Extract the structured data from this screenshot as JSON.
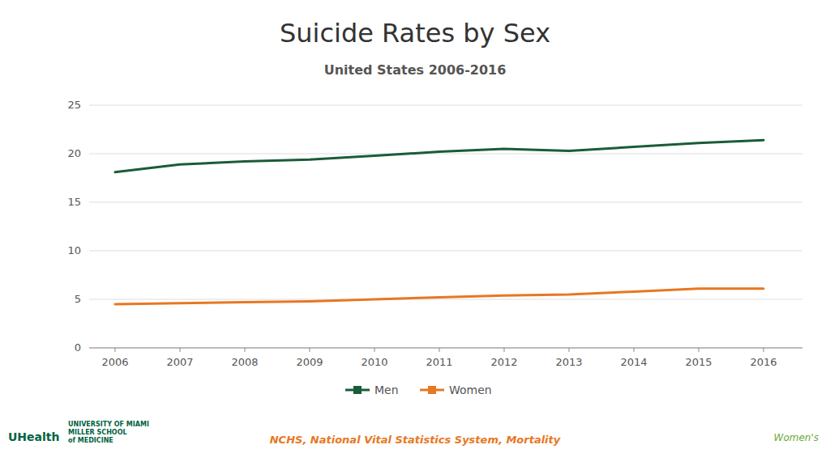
{
  "chart_data": {
    "type": "line",
    "title": "Suicide Rates by Sex",
    "subtitle": "United States 2006-2016",
    "x": [
      2006,
      2007,
      2008,
      2009,
      2010,
      2011,
      2012,
      2013,
      2014,
      2015,
      2016
    ],
    "series": [
      {
        "name": "Men",
        "color": "#1a5c38",
        "values": [
          18.1,
          18.9,
          19.2,
          19.4,
          19.8,
          20.2,
          20.5,
          20.3,
          20.7,
          21.1,
          21.4
        ]
      },
      {
        "name": "Women",
        "color": "#E87722",
        "values": [
          4.5,
          4.6,
          4.7,
          4.8,
          5.0,
          5.2,
          5.4,
          5.5,
          5.8,
          6.1,
          6.1
        ]
      }
    ],
    "xlim": [
      2005.6,
      2016.6
    ],
    "xticks": [
      2006,
      2007,
      2008,
      2009,
      2010,
      2011,
      2012,
      2013,
      2014,
      2015,
      2016
    ],
    "ylim": [
      0,
      25
    ],
    "yticks": [
      0,
      5,
      10,
      15,
      20,
      25
    ],
    "grid": true,
    "legend": "bottom",
    "source": "NCHS, National Vital Statistics System, Mortality",
    "annotations": [
      {
        "text": "UHealth",
        "color": "#006341"
      },
      {
        "text": "UNIVERSITY OF MIAMI\nMILLER SCHOOL\nof MEDICINE",
        "color": "#006341"
      },
      {
        "text": "Women's",
        "color": "#6aaa35"
      }
    ]
  }
}
